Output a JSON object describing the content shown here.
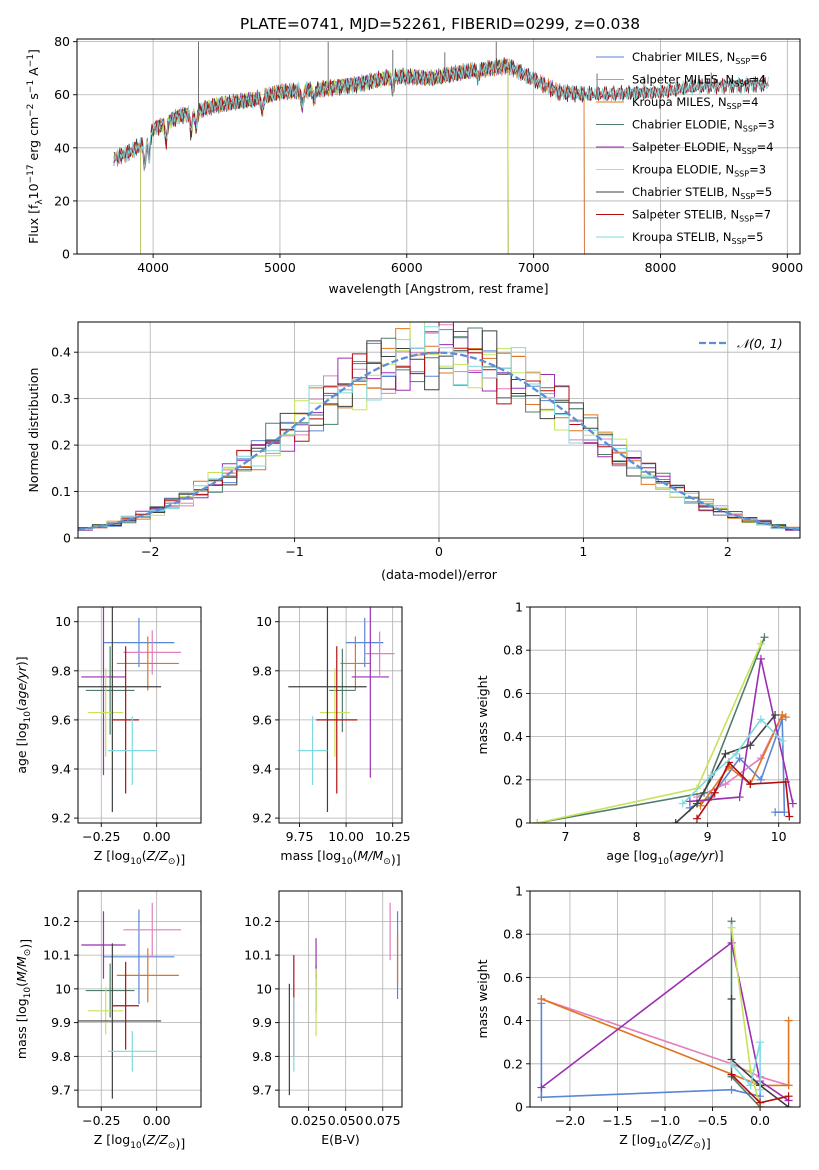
{
  "title": "PLATE=0741, MJD=52261, FIBERID=0299, z=0.038",
  "colors": {
    "Chabrier MILES": "#5b86d6",
    "Salpeter MILES": "#e37fbd",
    "Kroupa MILES": "#e0741f",
    "Chabrier ELODIE": "#4f7f6c",
    "Salpeter ELODIE": "#9b2fb0",
    "Kroupa ELODIE": "#c6e35a",
    "Chabrier STELIB": "#404040",
    "Salpeter STELIB": "#b00f0f",
    "Kroupa STELIB": "#7fd9e0",
    "normal": "#5b8fd6"
  },
  "chart_data": [
    {
      "id": "spectrum",
      "type": "line",
      "xlabel": "wavelength [Angstrom, rest frame]",
      "ylabel": "Flux [f",
      "ylabel_parts": [
        "Flux [f",
        "λ",
        "10",
        "−17",
        " erg cm",
        "−2",
        " s",
        "−1",
        " A",
        "−1",
        "]"
      ],
      "xlim": [
        3400,
        9100
      ],
      "ylim": [
        0,
        81
      ],
      "xticks": [
        4000,
        5000,
        6000,
        7000,
        8000,
        9000
      ],
      "yticks": [
        0,
        20,
        40,
        60,
        80
      ],
      "legend_position": "top-right",
      "legend": [
        {
          "name": "Chabrier MILES",
          "n": "6"
        },
        {
          "name": "Salpeter MILES",
          "n": "4"
        },
        {
          "name": "Kroupa MILES",
          "n": "4"
        },
        {
          "name": "Chabrier ELODIE",
          "n": "3"
        },
        {
          "name": "Salpeter ELODIE",
          "n": "4"
        },
        {
          "name": "Kroupa ELODIE",
          "n": "3"
        },
        {
          "name": "Chabrier STELIB",
          "n": "5"
        },
        {
          "name": "Salpeter STELIB",
          "n": "7"
        },
        {
          "name": "Kroupa STELIB",
          "n": "5"
        }
      ],
      "continuum": [
        [
          3700,
          36
        ],
        [
          3800,
          38
        ],
        [
          3900,
          41
        ],
        [
          4000,
          47
        ],
        [
          4200,
          52
        ],
        [
          4500,
          56
        ],
        [
          4800,
          58
        ],
        [
          5000,
          61
        ],
        [
          5300,
          62
        ],
        [
          5600,
          64
        ],
        [
          5900,
          67
        ],
        [
          6200,
          66
        ],
        [
          6500,
          69
        ],
        [
          6800,
          71
        ],
        [
          7000,
          66
        ],
        [
          7200,
          61
        ],
        [
          7400,
          60
        ],
        [
          7600,
          60
        ],
        [
          7800,
          61
        ],
        [
          8000,
          61
        ],
        [
          8300,
          63
        ],
        [
          8600,
          64
        ],
        [
          8850,
          64
        ]
      ],
      "range_ends": {
        "MILES": 7400,
        "ELODIE": 6800,
        "STELIB": 8850,
        "ELODIE_start": 3900
      }
    },
    {
      "id": "residual-hist",
      "type": "bar",
      "xlabel": "(data-model)/error",
      "ylabel": "Normed distribution",
      "xlim": [
        -2.5,
        2.5
      ],
      "ylim": [
        0,
        0.465
      ],
      "xticks": [
        -2,
        -1,
        0,
        1,
        2
      ],
      "yticks": [
        0.0,
        0.1,
        0.2,
        0.3,
        0.4
      ],
      "bin_width": 0.1,
      "legend": [
        "𝒩(0, 1)"
      ],
      "legend_position": "top-right"
    },
    {
      "id": "age-vs-Z",
      "type": "scatter",
      "xlabel": "Z [log",
      "ylabel": "age  [log",
      "xlim": [
        -0.355,
        0.2
      ],
      "ylim": [
        9.18,
        10.06
      ],
      "xticks": [
        -0.25,
        0.0
      ],
      "xticklabels": [
        "−0.25",
        "0.00"
      ],
      "yticks": [
        9.2,
        9.4,
        9.6,
        9.8,
        10.0
      ],
      "points": [
        {
          "model": "Chabrier MILES",
          "x": -0.08,
          "xerr": 0.16,
          "y": 9.915,
          "yerr": 0.1
        },
        {
          "model": "Salpeter MILES",
          "x": -0.02,
          "xerr": 0.13,
          "y": 9.875,
          "yerr": 0.09
        },
        {
          "model": "Kroupa MILES",
          "x": -0.04,
          "xerr": 0.14,
          "y": 9.83,
          "yerr": 0.11
        },
        {
          "model": "Chabrier ELODIE",
          "x": -0.21,
          "xerr": 0.11,
          "y": 9.72,
          "yerr": 0.18
        },
        {
          "model": "Salpeter ELODIE",
          "x": -0.24,
          "xerr": 0.1,
          "y": 9.775,
          "yerr": 0.4
        },
        {
          "model": "Kroupa ELODIE",
          "x": -0.23,
          "xerr": 0.08,
          "y": 9.63,
          "yerr": 0.18
        },
        {
          "model": "Chabrier STELIB",
          "x": -0.2,
          "xerr": 0.22,
          "y": 9.735,
          "yerr": 0.51
        },
        {
          "model": "Salpeter STELIB",
          "x": -0.14,
          "xerr": 0.06,
          "y": 9.6,
          "yerr": 0.3
        },
        {
          "model": "Kroupa STELIB",
          "x": -0.11,
          "xerr": 0.11,
          "y": 9.475,
          "yerr": 0.14
        }
      ]
    },
    {
      "id": "age-vs-mass",
      "type": "scatter",
      "xlabel": "mass [log",
      "ylabel": "",
      "xlim": [
        9.64,
        10.3
      ],
      "ylim": [
        9.18,
        10.06
      ],
      "xticks": [
        9.75,
        10.0,
        10.25
      ],
      "xticklabels": [
        "9.75",
        "10.00",
        "10.25"
      ],
      "yticks": [
        9.2,
        9.4,
        9.6,
        9.8,
        10.0
      ],
      "points": [
        {
          "model": "Chabrier MILES",
          "x": 10.1,
          "xerr": 0.1,
          "y": 9.915,
          "yerr": 0.1
        },
        {
          "model": "Salpeter MILES",
          "x": 10.18,
          "xerr": 0.08,
          "y": 9.87,
          "yerr": 0.09
        },
        {
          "model": "Kroupa MILES",
          "x": 10.05,
          "xerr": 0.08,
          "y": 9.83,
          "yerr": 0.11
        },
        {
          "model": "Chabrier ELODIE",
          "x": 9.98,
          "xerr": 0.07,
          "y": 9.72,
          "yerr": 0.17
        },
        {
          "model": "Salpeter ELODIE",
          "x": 10.13,
          "xerr": 0.1,
          "y": 9.775,
          "yerr": 0.41
        },
        {
          "model": "Kroupa ELODIE",
          "x": 9.94,
          "xerr": 0.08,
          "y": 9.63,
          "yerr": 0.18
        },
        {
          "model": "Chabrier STELIB",
          "x": 9.9,
          "xerr": 0.21,
          "y": 9.735,
          "yerr": 0.51
        },
        {
          "model": "Salpeter STELIB",
          "x": 9.95,
          "xerr": 0.11,
          "y": 9.6,
          "yerr": 0.3
        },
        {
          "model": "Kroupa STELIB",
          "x": 9.82,
          "xerr": 0.08,
          "y": 9.475,
          "yerr": 0.14
        }
      ]
    },
    {
      "id": "weight-vs-age",
      "type": "line",
      "xlabel": "age  [log",
      "ylabel": "mass weight",
      "xlim": [
        6.5,
        10.3
      ],
      "ylim": [
        0,
        1
      ],
      "xticks": [
        7,
        8,
        9,
        10
      ],
      "yticks": [
        0.0,
        0.2,
        0.4,
        0.6,
        0.8,
        1.0
      ],
      "series": [
        {
          "model": "Chabrier MILES",
          "x": [
            8.75,
            9.05,
            9.45,
            9.75,
            10.05,
            10.08,
            9.95
          ],
          "y": [
            0.07,
            0.12,
            0.3,
            0.2,
            0.48,
            0.05,
            0.05
          ]
        },
        {
          "model": "Salpeter MILES",
          "x": [
            8.85,
            9.25,
            9.75,
            10.05
          ],
          "y": [
            0.12,
            0.18,
            0.3,
            0.5
          ]
        },
        {
          "model": "Kroupa MILES",
          "x": [
            8.9,
            9.3,
            9.6,
            10.05,
            10.1
          ],
          "y": [
            0.08,
            0.26,
            0.18,
            0.5,
            0.49
          ]
        },
        {
          "model": "Chabrier ELODIE",
          "x": [
            6.6,
            8.95,
            9.8
          ],
          "y": [
            0.0,
            0.14,
            0.86
          ]
        },
        {
          "model": "Salpeter ELODIE",
          "x": [
            8.75,
            9.45,
            9.75,
            10.2
          ],
          "y": [
            0.1,
            0.12,
            0.76,
            0.09
          ]
        },
        {
          "model": "Kroupa ELODIE",
          "x": [
            6.6,
            8.85,
            9.75
          ],
          "y": [
            0.0,
            0.16,
            0.83
          ]
        },
        {
          "model": "Chabrier STELIB",
          "x": [
            8.55,
            8.85,
            9.25,
            9.6,
            9.95
          ],
          "y": [
            0.0,
            0.09,
            0.32,
            0.36,
            0.5
          ]
        },
        {
          "model": "Salpeter STELIB",
          "x": [
            8.85,
            9.1,
            9.3,
            9.6,
            10.1,
            10.15
          ],
          "y": [
            0.02,
            0.14,
            0.28,
            0.18,
            0.19,
            0.03
          ]
        },
        {
          "model": "Kroupa STELIB",
          "x": [
            8.65,
            9.05,
            9.4,
            9.75,
            10.05
          ],
          "y": [
            0.09,
            0.22,
            0.32,
            0.48,
            0.38
          ]
        }
      ]
    },
    {
      "id": "mass-vs-Z",
      "type": "scatter",
      "xlabel": "Z [log",
      "ylabel": "mass [log",
      "xlim": [
        -0.355,
        0.2
      ],
      "ylim": [
        9.65,
        10.29
      ],
      "xticks": [
        -0.25,
        0.0
      ],
      "xticklabels": [
        "−0.25",
        "0.00"
      ],
      "yticks": [
        9.7,
        9.8,
        9.9,
        10.0,
        10.1,
        10.2
      ],
      "points": [
        {
          "model": "Chabrier MILES",
          "x": -0.08,
          "xerr": 0.16,
          "y": 10.095,
          "yerr": 0.14
        },
        {
          "model": "Salpeter MILES",
          "x": -0.02,
          "xerr": 0.13,
          "y": 10.175,
          "yerr": 0.08
        },
        {
          "model": "Kroupa MILES",
          "x": -0.04,
          "xerr": 0.14,
          "y": 10.04,
          "yerr": 0.08
        },
        {
          "model": "Chabrier ELODIE",
          "x": -0.21,
          "xerr": 0.11,
          "y": 9.995,
          "yerr": 0.08
        },
        {
          "model": "Salpeter ELODIE",
          "x": -0.24,
          "xerr": 0.1,
          "y": 10.13,
          "yerr": 0.1
        },
        {
          "model": "Kroupa ELODIE",
          "x": -0.23,
          "xerr": 0.08,
          "y": 9.935,
          "yerr": 0.07
        },
        {
          "model": "Chabrier STELIB",
          "x": -0.2,
          "xerr": 0.22,
          "y": 9.905,
          "yerr": 0.23
        },
        {
          "model": "Salpeter STELIB",
          "x": -0.14,
          "xerr": 0.06,
          "y": 9.95,
          "yerr": 0.13
        },
        {
          "model": "Kroupa STELIB",
          "x": -0.11,
          "xerr": 0.11,
          "y": 9.815,
          "yerr": 0.06
        }
      ]
    },
    {
      "id": "mass-vs-ebv",
      "type": "scatter",
      "xlabel": "E(B-V)",
      "ylabel": "",
      "xlim": [
        0.005,
        0.088
      ],
      "ylim": [
        9.65,
        10.29
      ],
      "xticks": [
        0.025,
        0.05,
        0.075
      ],
      "xticklabels": [
        "0.025",
        "0.050",
        "0.075"
      ],
      "yticks": [
        9.7,
        9.8,
        9.9,
        10.0,
        10.1,
        10.2
      ],
      "points": [
        {
          "model": "Chabrier MILES",
          "x": 0.085,
          "y": 10.1,
          "yerr": 0.13
        },
        {
          "model": "Salpeter MILES",
          "x": 0.08,
          "y": 10.17,
          "yerr": 0.085
        },
        {
          "model": "Kroupa MILES",
          "x": 0.085,
          "y": 10.09,
          "yerr": 0.08
        },
        {
          "model": "Chabrier ELODIE",
          "x": 0.03,
          "y": 10.0,
          "yerr": 0.07
        },
        {
          "model": "Salpeter ELODIE",
          "x": 0.03,
          "y": 10.09,
          "yerr": 0.06
        },
        {
          "model": "Kroupa ELODIE",
          "x": 0.03,
          "y": 9.96,
          "yerr": 0.1
        },
        {
          "model": "Chabrier STELIB",
          "x": 0.012,
          "y": 9.85,
          "yerr": 0.165
        },
        {
          "model": "Salpeter STELIB",
          "x": 0.015,
          "y": 9.95,
          "yerr": 0.15
        },
        {
          "model": "Kroupa STELIB",
          "x": 0.015,
          "y": 9.865,
          "yerr": 0.11
        }
      ]
    },
    {
      "id": "weight-vs-Z",
      "type": "line",
      "xlabel": "Z [log",
      "ylabel": "mass weight",
      "xlim": [
        -2.42,
        0.42
      ],
      "ylim": [
        0,
        1
      ],
      "xticks": [
        -2.0,
        -1.5,
        -1.0,
        -0.5,
        0.0
      ],
      "xticklabels": [
        "−2.0",
        "−1.5",
        "−1.0",
        "−0.5",
        "0.0"
      ],
      "yticks": [
        0.0,
        0.2,
        0.4,
        0.6,
        0.8,
        1.0
      ],
      "series": [
        {
          "model": "Chabrier MILES",
          "x": [
            -2.3,
            -2.3,
            -0.3,
            0.0,
            0.0
          ],
          "y": [
            0.48,
            0.045,
            0.08,
            0.05,
            0.1
          ]
        },
        {
          "model": "Salpeter MILES",
          "x": [
            -2.3,
            -0.3,
            0.0,
            0.3
          ],
          "y": [
            0.5,
            0.2,
            0.14,
            0.1
          ]
        },
        {
          "model": "Kroupa MILES",
          "x": [
            -2.3,
            0.0,
            0.3,
            0.3
          ],
          "y": [
            0.5,
            0.1,
            0.1,
            0.4
          ]
        },
        {
          "model": "Chabrier ELODIE",
          "x": [
            -0.3,
            -0.3,
            0.0
          ],
          "y": [
            0.86,
            0.14,
            0.0
          ]
        },
        {
          "model": "Salpeter ELODIE",
          "x": [
            -2.3,
            -0.3,
            0.0,
            0.3
          ],
          "y": [
            0.09,
            0.76,
            0.12,
            0.03
          ]
        },
        {
          "model": "Kroupa ELODIE",
          "x": [
            -0.3,
            -0.1,
            0.0
          ],
          "y": [
            0.83,
            0.17,
            0.0
          ]
        },
        {
          "model": "Chabrier STELIB",
          "x": [
            -0.3,
            -0.3,
            0.0,
            0.3
          ],
          "y": [
            0.5,
            0.22,
            0.1,
            0.0
          ]
        },
        {
          "model": "Salpeter STELIB",
          "x": [
            -0.3,
            0.0,
            0.3
          ],
          "y": [
            0.15,
            0.02,
            0.05
          ]
        },
        {
          "model": "Kroupa STELIB",
          "x": [
            -0.3,
            -0.1,
            0.0,
            0.0
          ],
          "y": [
            0.2,
            0.1,
            0.3,
            0.08
          ]
        }
      ]
    }
  ]
}
